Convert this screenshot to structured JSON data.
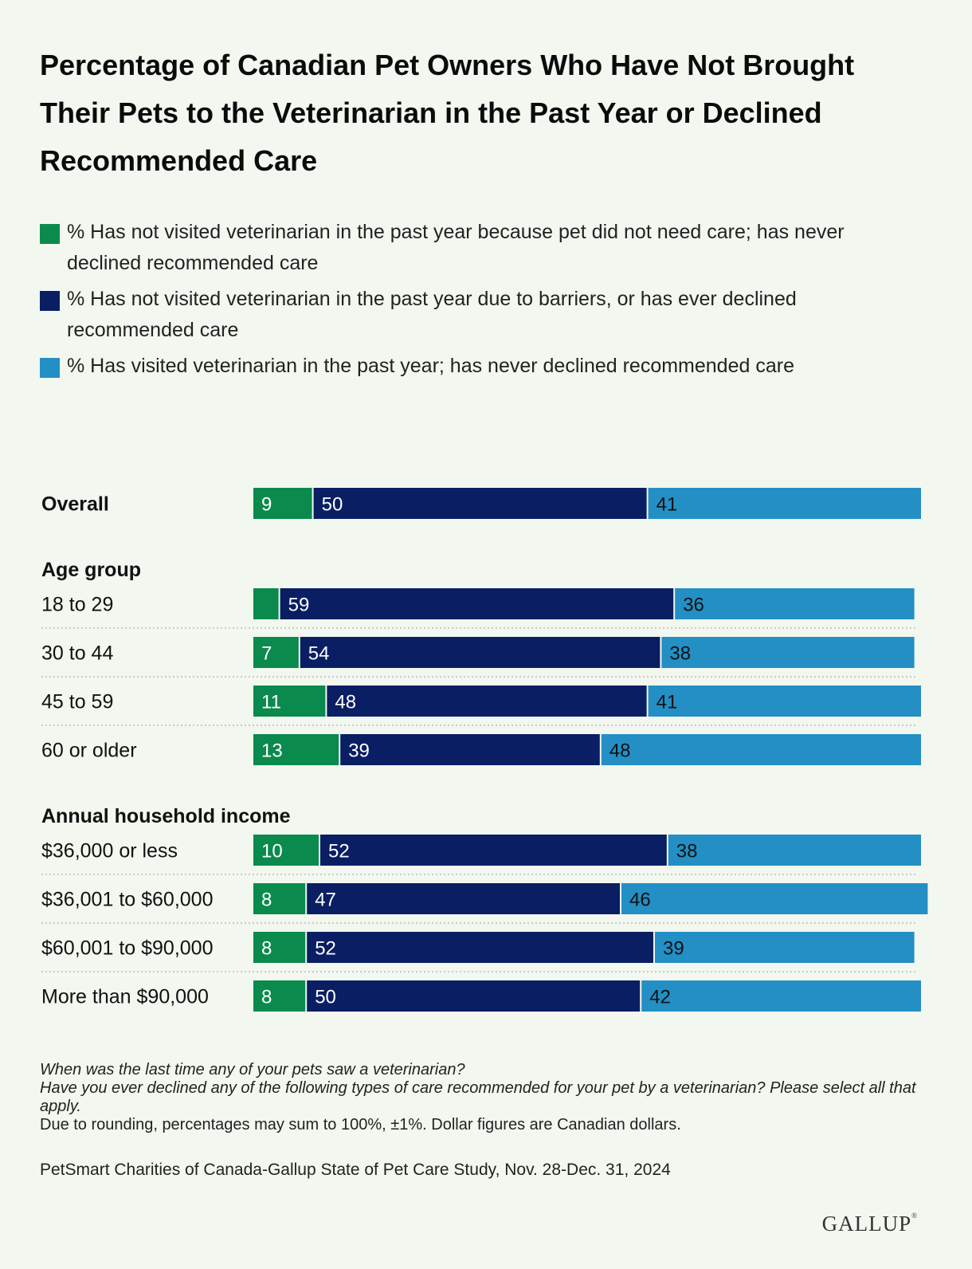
{
  "title": "Percentage of Canadian Pet Owners Who Have Not Brought Their Pets to the Veterinarian in the Past Year or Declined Recommended Care",
  "legend": [
    {
      "label": "% Has not visited veterinarian in the past year because pet did not need care; has never declined recommended care",
      "color": "#0b8a4e"
    },
    {
      "label": "% Has not visited veterinarian in the past year due to barriers, or has ever declined recommended care",
      "color": "#0a1e63"
    },
    {
      "label": "% Has visited veterinarian in the past year; has never declined recommended care",
      "color": "#238fc5"
    }
  ],
  "chart_data": {
    "type": "bar",
    "orientation": "horizontal",
    "stacked": true,
    "title": "Percentage of Canadian Pet Owners Who Have Not Brought Their Pets to the Veterinarian in the Past Year or Declined Recommended Care",
    "series": [
      {
        "name": "% Has not visited veterinarian in the past year because pet did not need care; has never declined recommended care",
        "color": "#0b8a4e"
      },
      {
        "name": "% Has not visited veterinarian in the past year due to barriers, or has ever declined recommended care",
        "color": "#0a1e63"
      },
      {
        "name": "% Has visited veterinarian in the past year; has never declined recommended care",
        "color": "#238fc5"
      }
    ],
    "groups": [
      {
        "heading": "",
        "rows": [
          {
            "label": "Overall",
            "bold": true,
            "values": [
              9,
              50,
              41
            ],
            "labels": [
              "9",
              "50",
              "41"
            ]
          }
        ]
      },
      {
        "heading": "Age group",
        "rows": [
          {
            "label": "18 to 29",
            "values": [
              4,
              59,
              36
            ],
            "labels": [
              "",
              "59",
              "36"
            ]
          },
          {
            "label": "30 to 44",
            "values": [
              7,
              54,
              38
            ],
            "labels": [
              "7",
              "54",
              "38"
            ]
          },
          {
            "label": "45 to 59",
            "values": [
              11,
              48,
              41
            ],
            "labels": [
              "11",
              "48",
              "41"
            ]
          },
          {
            "label": "60 or older",
            "values": [
              13,
              39,
              48
            ],
            "labels": [
              "13",
              "39",
              "48"
            ]
          }
        ]
      },
      {
        "heading": "Annual household income",
        "rows": [
          {
            "label": "$36,000 or less",
            "values": [
              10,
              52,
              38
            ],
            "labels": [
              "10",
              "52",
              "38"
            ]
          },
          {
            "label": "$36,001 to $60,000",
            "values": [
              8,
              47,
              46
            ],
            "labels": [
              "8",
              "47",
              "46"
            ]
          },
          {
            "label": "$60,001 to $90,000",
            "values": [
              8,
              52,
              39
            ],
            "labels": [
              "8",
              "52",
              "39"
            ]
          },
          {
            "label": "More than $90,000",
            "values": [
              8,
              50,
              42
            ],
            "labels": [
              "8",
              "50",
              "42"
            ]
          }
        ]
      }
    ],
    "xlim": [
      0,
      100
    ]
  },
  "notes": {
    "q1": "When was the last time any of your pets saw a veterinarian?",
    "q2": "Have you ever declined any of the following types of care recommended for your pet by a veterinarian? Please select all that apply.",
    "rounding": "Due to rounding, percentages may sum to 100%, ±1%. Dollar figures are Canadian dollars."
  },
  "source": "PetSmart Charities of Canada-Gallup State of Pet Care Study, Nov. 28-Dec. 31, 2024",
  "logo": {
    "text": "GALLUP",
    "mark": "®"
  }
}
